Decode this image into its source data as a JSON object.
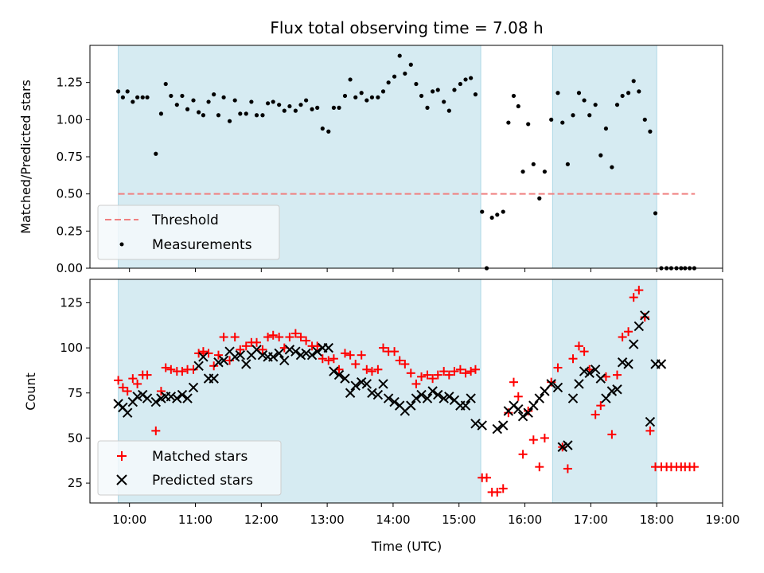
{
  "chart_data": {
    "type": "scatter",
    "title": "Flux total observing time = 7.08 h",
    "xlabel": "Time (UTC)",
    "xlim": [
      9.4,
      19.0
    ],
    "xticks": [
      "10:00",
      "11:00",
      "12:00",
      "13:00",
      "14:00",
      "15:00",
      "16:00",
      "17:00",
      "18:00",
      "19:00"
    ],
    "xtick_values": [
      10,
      11,
      12,
      13,
      14,
      15,
      16,
      17,
      18,
      19
    ],
    "shaded_intervals": [
      [
        9.83,
        15.33
      ],
      [
        16.42,
        18.0
      ]
    ],
    "shade_color": "#add8e6",
    "top_panel": {
      "ylabel": "Matched/Predicted stars",
      "ylim": [
        0,
        1.5
      ],
      "yticks": [
        0,
        0.25,
        0.5,
        0.75,
        1.0,
        1.25
      ],
      "ytick_labels": [
        "0.00",
        "0.25",
        "0.50",
        "0.75",
        "1.00",
        "1.25"
      ],
      "legend": [
        "Threshold",
        "Measurements"
      ],
      "threshold": {
        "name": "Threshold",
        "y": 0.5,
        "x_range": [
          9.83,
          18.58
        ],
        "color": "#f08080",
        "style": "dashed"
      },
      "measurements": {
        "name": "Measurements",
        "color": "#000000",
        "x": [
          9.83,
          9.9,
          9.97,
          10.05,
          10.12,
          10.2,
          10.27,
          10.4,
          10.48,
          10.55,
          10.63,
          10.72,
          10.8,
          10.88,
          10.97,
          11.05,
          11.12,
          11.2,
          11.28,
          11.35,
          11.43,
          11.52,
          11.6,
          11.68,
          11.77,
          11.85,
          11.93,
          12.02,
          12.1,
          12.18,
          12.27,
          12.35,
          12.43,
          12.52,
          12.6,
          12.68,
          12.77,
          12.85,
          12.93,
          13.02,
          13.1,
          13.18,
          13.27,
          13.35,
          13.43,
          13.52,
          13.6,
          13.68,
          13.77,
          13.85,
          13.93,
          14.02,
          14.1,
          14.18,
          14.27,
          14.35,
          14.43,
          14.52,
          14.6,
          14.68,
          14.77,
          14.85,
          14.93,
          15.02,
          15.1,
          15.18,
          15.25,
          15.35,
          15.42,
          15.5,
          15.58,
          15.67,
          15.75,
          15.83,
          15.9,
          15.97,
          16.05,
          16.13,
          16.22,
          16.3,
          16.4,
          16.5,
          16.57,
          16.65,
          16.73,
          16.82,
          16.9,
          16.98,
          17.07,
          17.15,
          17.23,
          17.32,
          17.4,
          17.48,
          17.57,
          17.65,
          17.73,
          17.82,
          17.9,
          17.98,
          18.07,
          18.15,
          18.22,
          18.3,
          18.37,
          18.43,
          18.5,
          18.57
        ],
        "y": [
          1.19,
          1.15,
          1.19,
          1.12,
          1.15,
          1.15,
          1.15,
          0.77,
          1.04,
          1.24,
          1.16,
          1.1,
          1.16,
          1.07,
          1.13,
          1.05,
          1.03,
          1.12,
          1.17,
          1.03,
          1.15,
          0.99,
          1.13,
          1.04,
          1.04,
          1.12,
          1.03,
          1.03,
          1.11,
          1.12,
          1.1,
          1.06,
          1.09,
          1.06,
          1.1,
          1.13,
          1.07,
          1.08,
          0.94,
          0.92,
          1.08,
          1.08,
          1.16,
          1.27,
          1.15,
          1.18,
          1.13,
          1.15,
          1.15,
          1.19,
          1.25,
          1.29,
          1.43,
          1.31,
          1.37,
          1.24,
          1.16,
          1.08,
          1.19,
          1.2,
          1.12,
          1.06,
          1.2,
          1.24,
          1.27,
          1.28,
          1.17,
          0.38,
          0.0,
          0.34,
          0.36,
          0.38,
          0.98,
          1.16,
          1.09,
          0.65,
          0.97,
          0.7,
          0.47,
          0.65,
          1.0,
          1.18,
          0.98,
          0.7,
          1.03,
          1.18,
          1.13,
          1.03,
          1.1,
          0.76,
          0.94,
          0.68,
          1.1,
          1.16,
          1.18,
          1.26,
          1.19,
          1.0,
          0.92,
          0.37,
          0.0,
          0.0,
          0.0,
          0.0,
          0.0,
          0.0,
          0.0,
          0.0
        ]
      }
    },
    "bottom_panel": {
      "ylabel": "Count",
      "ylim": [
        14,
        138
      ],
      "yticks": [
        25,
        50,
        75,
        100,
        125
      ],
      "legend": [
        "Matched stars",
        "Predicted stars"
      ],
      "series": [
        {
          "name": "Matched stars",
          "marker": "+",
          "color": "#ff0000",
          "x": [
            9.83,
            9.9,
            9.97,
            10.05,
            10.12,
            10.2,
            10.27,
            10.4,
            10.48,
            10.55,
            10.63,
            10.72,
            10.8,
            10.88,
            10.97,
            11.05,
            11.12,
            11.2,
            11.28,
            11.35,
            11.43,
            11.52,
            11.6,
            11.68,
            11.77,
            11.85,
            11.93,
            12.02,
            12.1,
            12.18,
            12.27,
            12.35,
            12.43,
            12.52,
            12.6,
            12.68,
            12.77,
            12.85,
            12.93,
            13.02,
            13.1,
            13.18,
            13.27,
            13.35,
            13.43,
            13.52,
            13.6,
            13.68,
            13.77,
            13.85,
            13.93,
            14.02,
            14.1,
            14.18,
            14.27,
            14.35,
            14.43,
            14.52,
            14.6,
            14.68,
            14.77,
            14.85,
            14.93,
            15.02,
            15.1,
            15.18,
            15.25,
            15.35,
            15.42,
            15.5,
            15.58,
            15.67,
            15.75,
            15.83,
            15.9,
            15.97,
            16.05,
            16.13,
            16.22,
            16.3,
            16.4,
            16.5,
            16.57,
            16.65,
            16.73,
            16.82,
            16.9,
            16.98,
            17.07,
            17.15,
            17.23,
            17.32,
            17.4,
            17.48,
            17.57,
            17.65,
            17.73,
            17.82,
            17.9,
            17.98,
            18.07,
            18.15,
            18.22,
            18.3,
            18.37,
            18.43,
            18.5,
            18.57
          ],
          "y": [
            82,
            78,
            76,
            83,
            80,
            85,
            85,
            54,
            76,
            89,
            88,
            87,
            87,
            88,
            88,
            97,
            98,
            97,
            90,
            96,
            106,
            93,
            106,
            99,
            101,
            103,
            103,
            99,
            106,
            107,
            106,
            100,
            106,
            108,
            106,
            104,
            101,
            101,
            94,
            93,
            94,
            88,
            97,
            96,
            91,
            96,
            88,
            87,
            88,
            100,
            98,
            98,
            93,
            91,
            86,
            80,
            84,
            85,
            83,
            85,
            87,
            85,
            87,
            88,
            86,
            87,
            88,
            28,
            28,
            20,
            20,
            22,
            64,
            81,
            73,
            41,
            65,
            49,
            34,
            50,
            81,
            89,
            45,
            33,
            94,
            101,
            98,
            88,
            63,
            68,
            84,
            52,
            85,
            106,
            109,
            128,
            132,
            117,
            54,
            34,
            34,
            34,
            34,
            34,
            34,
            34,
            34,
            34
          ]
        },
        {
          "name": "Predicted stars",
          "marker": "x",
          "color": "#000000",
          "x": [
            9.83,
            9.9,
            9.97,
            10.05,
            10.12,
            10.2,
            10.27,
            10.4,
            10.48,
            10.55,
            10.63,
            10.72,
            10.8,
            10.88,
            10.97,
            11.05,
            11.12,
            11.2,
            11.28,
            11.35,
            11.43,
            11.52,
            11.6,
            11.68,
            11.77,
            11.85,
            11.93,
            12.02,
            12.1,
            12.18,
            12.27,
            12.35,
            12.43,
            12.52,
            12.6,
            12.68,
            12.77,
            12.85,
            12.93,
            13.02,
            13.1,
            13.18,
            13.27,
            13.35,
            13.43,
            13.52,
            13.6,
            13.68,
            13.77,
            13.85,
            13.93,
            14.02,
            14.1,
            14.18,
            14.27,
            14.35,
            14.43,
            14.52,
            14.6,
            14.68,
            14.77,
            14.85,
            14.93,
            15.02,
            15.1,
            15.18,
            15.25,
            15.35,
            15.58,
            15.67,
            15.75,
            15.83,
            15.9,
            15.97,
            16.05,
            16.13,
            16.22,
            16.3,
            16.4,
            16.5,
            16.57,
            16.65,
            16.73,
            16.82,
            16.9,
            16.98,
            17.07,
            17.15,
            17.23,
            17.32,
            17.4,
            17.48,
            17.57,
            17.65,
            17.73,
            17.82,
            17.9,
            17.98,
            18.07
          ],
          "y": [
            69,
            67,
            64,
            70,
            73,
            74,
            72,
            70,
            72,
            73,
            73,
            72,
            74,
            72,
            78,
            90,
            95,
            83,
            83,
            92,
            93,
            98,
            95,
            96,
            91,
            96,
            99,
            96,
            95,
            95,
            97,
            93,
            99,
            98,
            96,
            97,
            96,
            98,
            100,
            100,
            87,
            85,
            83,
            75,
            79,
            81,
            80,
            75,
            74,
            80,
            72,
            70,
            68,
            65,
            68,
            72,
            74,
            72,
            76,
            74,
            72,
            73,
            71,
            68,
            68,
            72,
            58,
            57,
            55,
            57,
            65,
            68,
            66,
            62,
            64,
            68,
            72,
            76,
            80,
            78,
            45,
            46,
            72,
            80,
            87,
            86,
            88,
            83,
            72,
            76,
            77,
            92,
            91,
            102,
            112,
            118,
            59,
            91,
            91
          ]
        }
      ]
    }
  }
}
